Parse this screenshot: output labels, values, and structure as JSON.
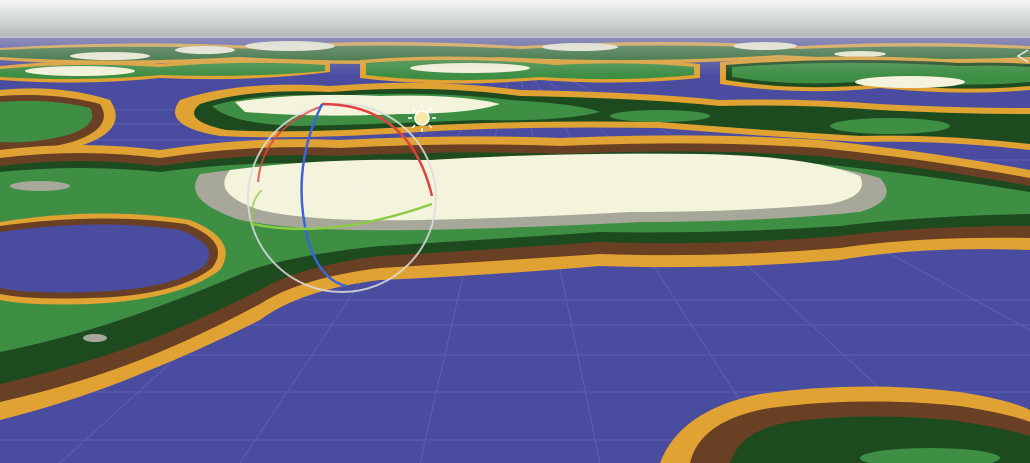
{
  "viewport": {
    "name": "scene-view",
    "colors": {
      "sky_top": "#f2f4f4",
      "sky_bottom": "#9a9ea0",
      "water": "#4a4ca0",
      "sand": "#e0a232",
      "dirt": "#6a4024",
      "grass_dark": "#1d4a1f",
      "grass": "#3e8e44",
      "rock": "#a8a89a",
      "snow": "#f4f4dc",
      "grid": "#6a6cc0",
      "gizmo_ring": "#d8d8d8",
      "axis_x": "#e34040",
      "axis_y": "#3a66d8",
      "axis_z": "#8ccc44",
      "light": "#f6e9a8"
    },
    "icons": {
      "light": "directional-light-icon",
      "gizmo": "rotate-gizmo"
    }
  }
}
